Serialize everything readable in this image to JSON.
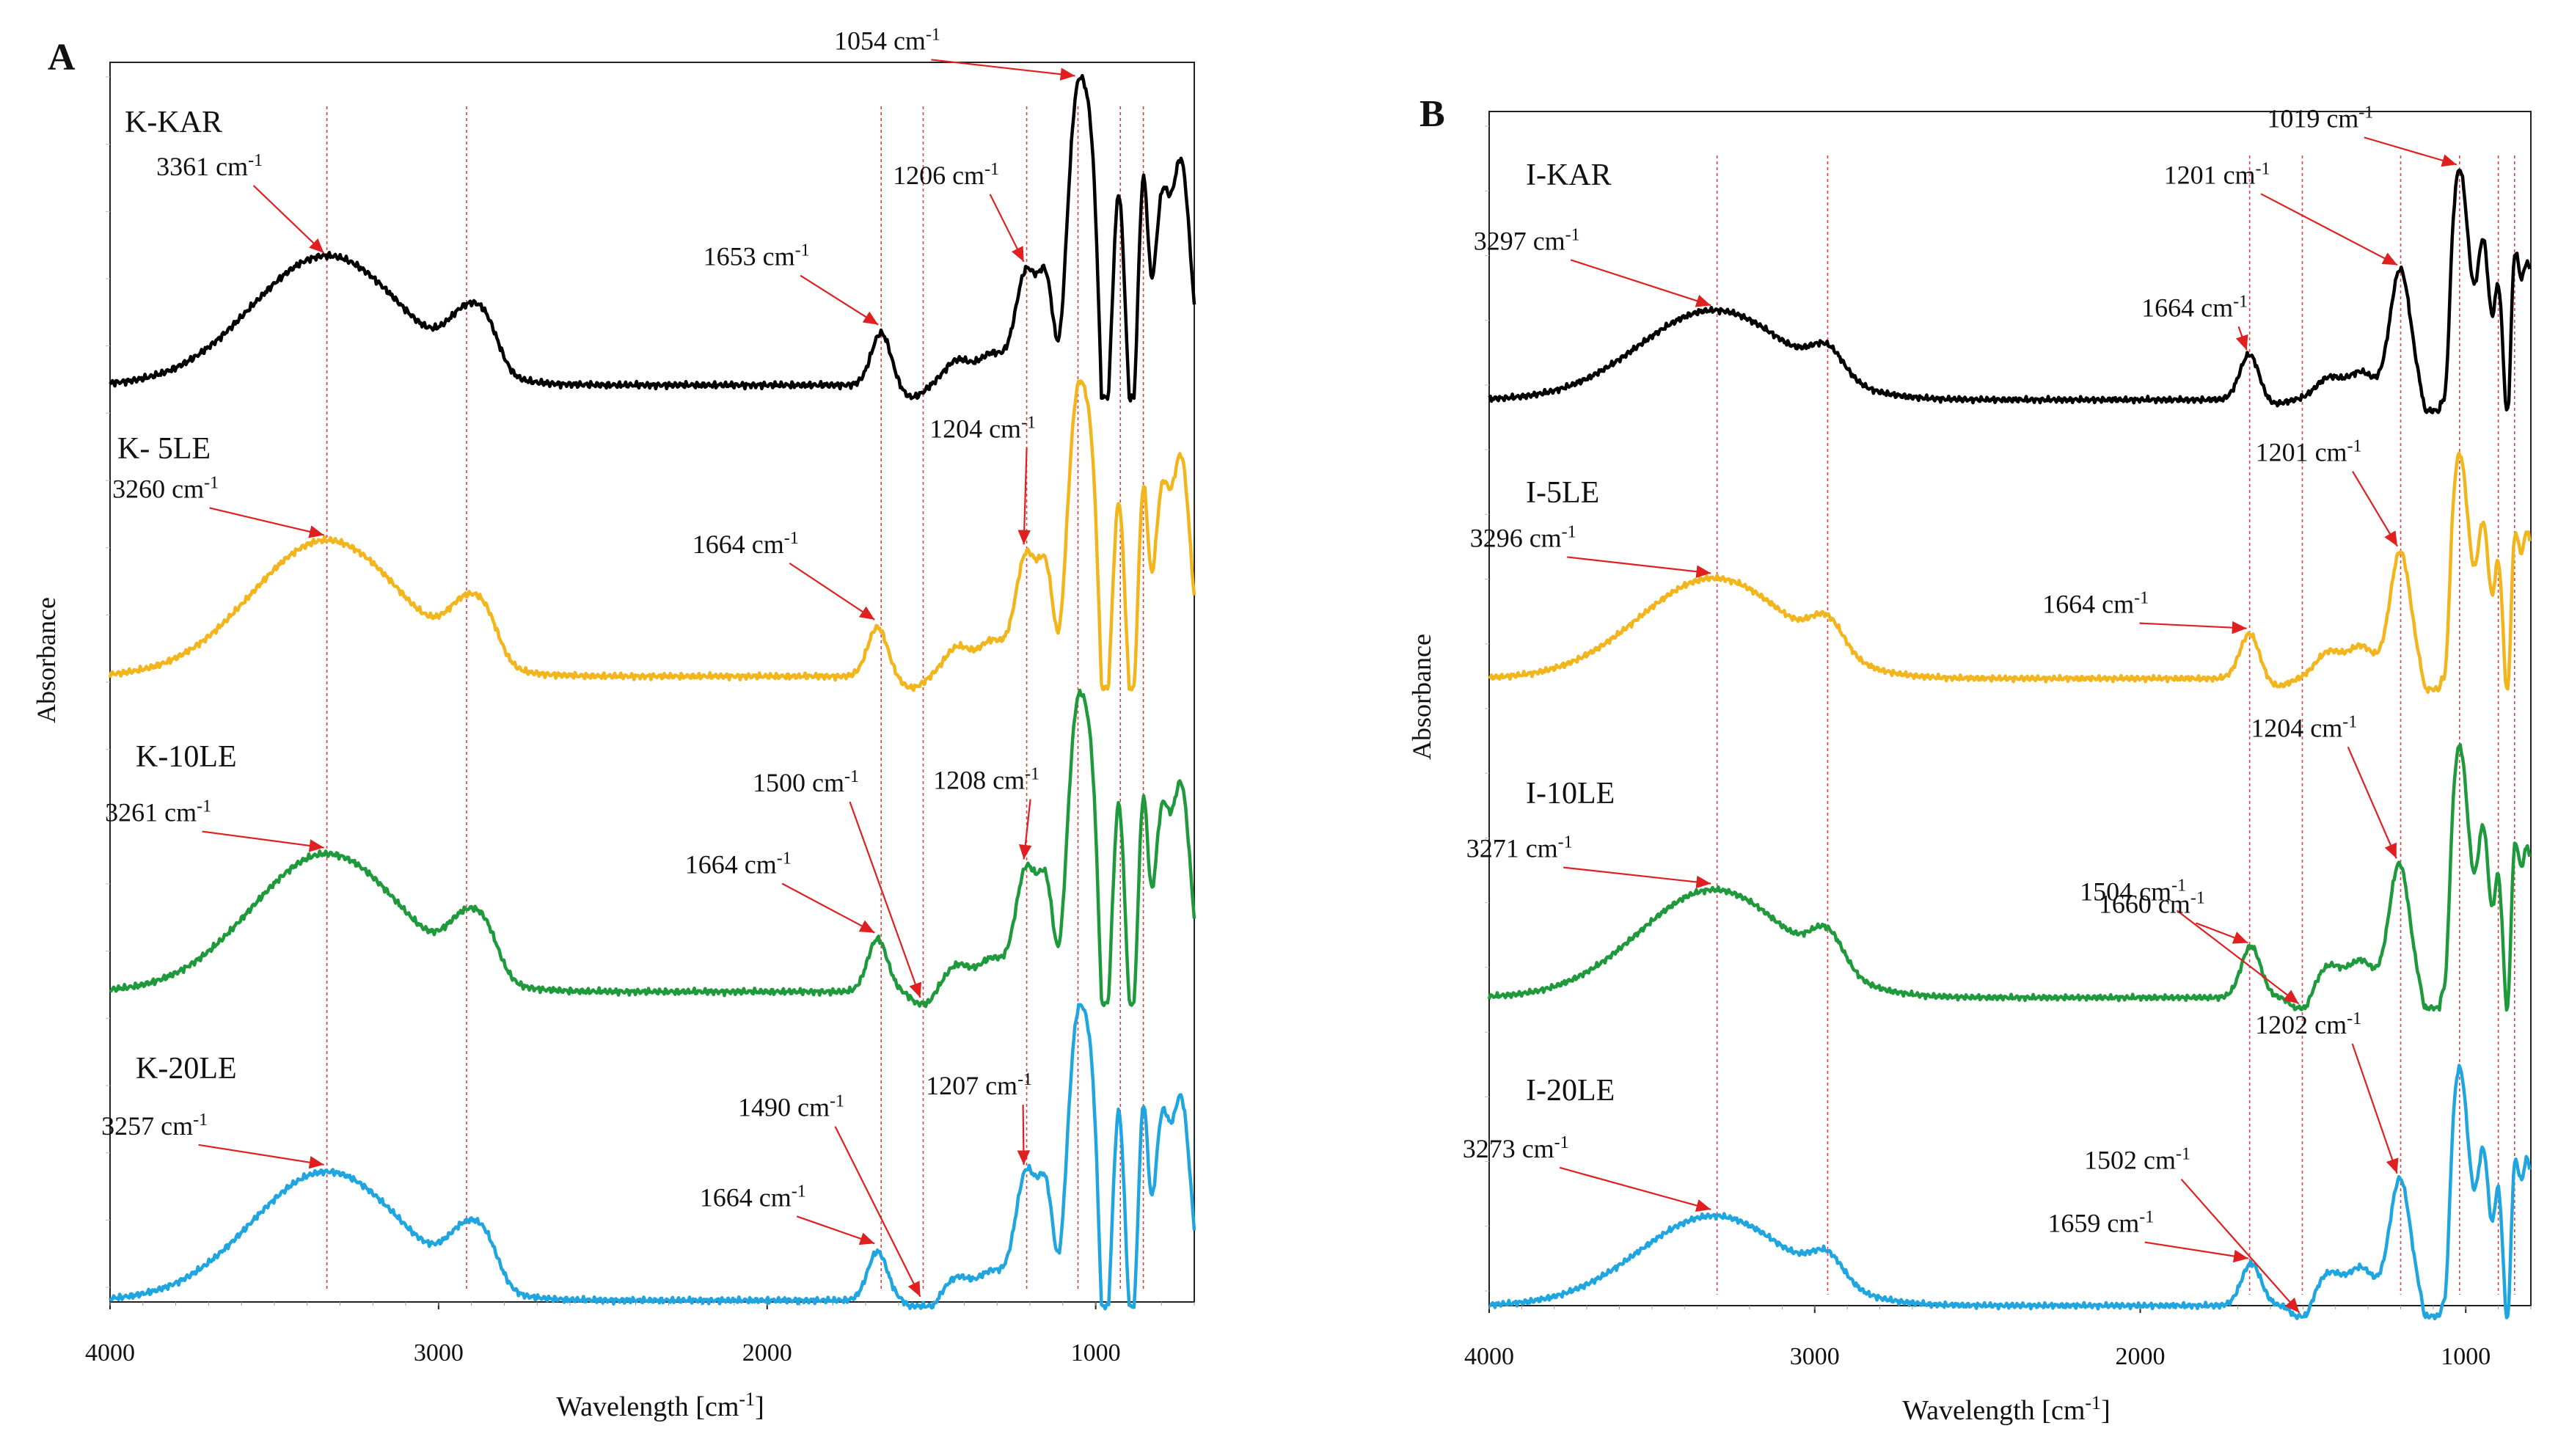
{
  "figure": {
    "description_free": true
  },
  "chart_data": [
    {
      "type": "line",
      "panel_label": "A",
      "xlabel": "Wavelength [cm",
      "xlabel_sup": "-1",
      "xlabel_tail": "]",
      "ylabel": "Absorbance",
      "xlim": [
        4000,
        700
      ],
      "x_ticks": [
        4000,
        3000,
        2000,
        1000
      ],
      "unit": "cm",
      "unit_sup": "-1",
      "colors": {
        "K-KAR": "#000000",
        "K- 5LE": "#f2b51c",
        "K-10LE": "#1e9a3c",
        "K-20LE": "#1fa5e0"
      },
      "ref_lines": [
        3340,
        2915,
        1653,
        1525,
        1210,
        1054,
        925,
        855
      ],
      "series": [
        {
          "name": "K-KAR",
          "color": "#000000",
          "baseline": 0.0,
          "peaks": [
            [
              3340,
              0.42,
              230
            ],
            [
              2915,
              0.16,
              55
            ],
            [
              2850,
              0.1,
              40
            ],
            [
              1653,
              0.17,
              30
            ],
            [
              1420,
              0.08,
              40
            ],
            [
              1315,
              0.1,
              40
            ],
            [
              1210,
              0.37,
              34
            ],
            [
              1150,
              0.28,
              22
            ],
            [
              1054,
              0.95,
              32
            ],
            [
              1010,
              0.4,
              20
            ],
            [
              930,
              0.62,
              16
            ],
            [
              855,
              0.65,
              14
            ],
            [
              800,
              0.55,
              22
            ],
            [
              740,
              0.72,
              28
            ]
          ],
          "dips": [
            [
              1560,
              0.04,
              35
            ],
            [
              1110,
              0.1,
              15
            ],
            [
              975,
              0.32,
              12
            ],
            [
              890,
              0.18,
              10
            ]
          ],
          "annotations": [
            {
              "text": "3361 cm",
              "x": 3340
            },
            {
              "text": "1653 cm",
              "x": 1653
            },
            {
              "text": "1206 cm",
              "x": 1210
            },
            {
              "text": "1054 cm",
              "x": 1054
            }
          ]
        },
        {
          "name": "K- 5LE",
          "color": "#f2b51c",
          "baseline": 0.0,
          "peaks": [
            [
              3340,
              0.47,
              230
            ],
            [
              2915,
              0.17,
              55
            ],
            [
              2850,
              0.1,
              40
            ],
            [
              1664,
              0.17,
              30
            ],
            [
              1420,
              0.1,
              40
            ],
            [
              1315,
              0.12,
              40
            ],
            [
              1210,
              0.42,
              34
            ],
            [
              1150,
              0.3,
              22
            ],
            [
              1054,
              0.97,
              32
            ],
            [
              1010,
              0.4,
              20
            ],
            [
              930,
              0.6,
              16
            ],
            [
              855,
              0.63,
              14
            ],
            [
              800,
              0.58,
              22
            ],
            [
              740,
              0.75,
              28
            ]
          ],
          "dips": [
            [
              1560,
              0.04,
              35
            ],
            [
              1110,
              0.1,
              15
            ],
            [
              975,
              0.32,
              12
            ],
            [
              890,
              0.18,
              10
            ]
          ],
          "annotations": [
            {
              "text": "3260 cm",
              "x": 3340
            },
            {
              "text": "1664 cm",
              "x": 1664
            },
            {
              "text": "1204 cm",
              "x": 1210
            }
          ]
        },
        {
          "name": "K-10LE",
          "color": "#1e9a3c",
          "baseline": 0.0,
          "peaks": [
            [
              3340,
              0.47,
              230
            ],
            [
              2915,
              0.17,
              55
            ],
            [
              2850,
              0.1,
              40
            ],
            [
              1664,
              0.18,
              30
            ],
            [
              1420,
              0.09,
              40
            ],
            [
              1315,
              0.11,
              40
            ],
            [
              1210,
              0.42,
              34
            ],
            [
              1150,
              0.3,
              22
            ],
            [
              1054,
              0.97,
              32
            ],
            [
              1010,
              0.4,
              20
            ],
            [
              930,
              0.64,
              16
            ],
            [
              855,
              0.64,
              14
            ],
            [
              800,
              0.56,
              22
            ],
            [
              740,
              0.7,
              28
            ]
          ],
          "dips": [
            [
              1525,
              0.05,
              30
            ],
            [
              1110,
              0.1,
              15
            ],
            [
              975,
              0.32,
              12
            ],
            [
              890,
              0.18,
              10
            ]
          ],
          "annotations": [
            {
              "text": "3261 cm",
              "x": 3340
            },
            {
              "text": "1500 cm",
              "x": 1525
            },
            {
              "text": "1664 cm",
              "x": 1664
            },
            {
              "text": "1208 cm",
              "x": 1210
            }
          ]
        },
        {
          "name": "K-20LE",
          "color": "#1fa5e0",
          "baseline": -0.02,
          "peaks": [
            [
              3340,
              0.45,
              230
            ],
            [
              2915,
              0.17,
              55
            ],
            [
              2850,
              0.1,
              40
            ],
            [
              1664,
              0.17,
              30
            ],
            [
              1420,
              0.08,
              40
            ],
            [
              1315,
              0.1,
              40
            ],
            [
              1210,
              0.45,
              34
            ],
            [
              1150,
              0.32,
              22
            ],
            [
              1054,
              0.98,
              32
            ],
            [
              1010,
              0.42,
              20
            ],
            [
              930,
              0.66,
              16
            ],
            [
              855,
              0.66,
              14
            ],
            [
              800,
              0.58,
              22
            ],
            [
              740,
              0.7,
              28
            ]
          ],
          "dips": [
            [
              1525,
              0.06,
              30
            ],
            [
              1110,
              0.1,
              15
            ],
            [
              975,
              0.32,
              12
            ],
            [
              890,
              0.18,
              10
            ]
          ],
          "annotations": [
            {
              "text": "3257 cm",
              "x": 3340
            },
            {
              "text": "1490 cm",
              "x": 1525
            },
            {
              "text": "1664 cm",
              "x": 1664
            },
            {
              "text": "1207 cm",
              "x": 1210
            }
          ]
        }
      ]
    },
    {
      "type": "line",
      "panel_label": "B",
      "xlabel": "Wavelength [cm",
      "xlabel_sup": "-1",
      "xlabel_tail": "]",
      "ylabel": "Absorbance",
      "xlim": [
        4000,
        800
      ],
      "x_ticks": [
        4000,
        3000,
        2000,
        1000
      ],
      "unit": "cm",
      "unit_sup": "-1",
      "colors": {
        "I-KAR": "#000000",
        "I-5LE": "#f2b51c",
        "I-10LE": "#1e9a3c",
        "I-20LE": "#1fa5e0"
      },
      "ref_lines": [
        3300,
        2960,
        1664,
        1502,
        1200,
        1019,
        900,
        850
      ],
      "series": [
        {
          "name": "I-KAR",
          "color": "#000000",
          "baseline": 0.0,
          "peaks": [
            [
              3310,
              0.33,
              230
            ],
            [
              2960,
              0.1,
              50
            ],
            [
              1664,
              0.17,
              30
            ],
            [
              1420,
              0.08,
              40
            ],
            [
              1320,
              0.1,
              40
            ],
            [
              1201,
              0.48,
              32
            ],
            [
              1019,
              0.85,
              30
            ],
            [
              945,
              0.55,
              18
            ],
            [
              900,
              0.4,
              12
            ],
            [
              850,
              0.5,
              14
            ],
            [
              810,
              0.5,
              18
            ]
          ],
          "dips": [
            [
              1600,
              0.02,
              35
            ],
            [
              1100,
              0.2,
              18
            ],
            [
              1060,
              0.25,
              10
            ],
            [
              870,
              0.25,
              8
            ]
          ],
          "annotations": [
            {
              "text": "3297 cm",
              "x": 3310
            },
            {
              "text": "1664 cm",
              "x": 1664
            },
            {
              "text": "1201 cm",
              "x": 1201
            },
            {
              "text": "1019 cm",
              "x": 1019
            }
          ]
        },
        {
          "name": "I-5LE",
          "color": "#f2b51c",
          "baseline": 0.0,
          "peaks": [
            [
              3310,
              0.38,
              230
            ],
            [
              2960,
              0.12,
              50
            ],
            [
              1664,
              0.17,
              30
            ],
            [
              1420,
              0.1,
              40
            ],
            [
              1320,
              0.12,
              40
            ],
            [
              1201,
              0.48,
              32
            ],
            [
              1019,
              0.85,
              30
            ],
            [
              945,
              0.55,
              18
            ],
            [
              900,
              0.42,
              12
            ],
            [
              850,
              0.5,
              14
            ],
            [
              810,
              0.55,
              18
            ]
          ],
          "dips": [
            [
              1580,
              0.03,
              35
            ],
            [
              1100,
              0.2,
              18
            ],
            [
              1060,
              0.25,
              10
            ],
            [
              870,
              0.25,
              8
            ]
          ],
          "annotations": [
            {
              "text": "3296 cm",
              "x": 3310
            },
            {
              "text": "1664 cm",
              "x": 1664
            },
            {
              "text": "1201 cm",
              "x": 1201
            }
          ]
        },
        {
          "name": "I-10LE",
          "color": "#1e9a3c",
          "baseline": 0.0,
          "peaks": [
            [
              3310,
              0.42,
              230
            ],
            [
              2960,
              0.14,
              50
            ],
            [
              1660,
              0.2,
              30
            ],
            [
              1420,
              0.12,
              40
            ],
            [
              1320,
              0.14,
              40
            ],
            [
              1204,
              0.52,
              32
            ],
            [
              1019,
              0.98,
              30
            ],
            [
              945,
              0.62,
              18
            ],
            [
              900,
              0.45,
              12
            ],
            [
              850,
              0.55,
              14
            ],
            [
              810,
              0.58,
              18
            ]
          ],
          "dips": [
            [
              1504,
              0.07,
              25
            ],
            [
              1100,
              0.22,
              18
            ],
            [
              1060,
              0.25,
              10
            ],
            [
              870,
              0.25,
              8
            ]
          ],
          "annotations": [
            {
              "text": "3271 cm",
              "x": 3310
            },
            {
              "text": "1504 cm",
              "x": 1504
            },
            {
              "text": "1660 cm",
              "x": 1660
            },
            {
              "text": "1204 cm",
              "x": 1204
            }
          ]
        },
        {
          "name": "I-20LE",
          "color": "#1fa5e0",
          "baseline": 0.0,
          "peaks": [
            [
              3310,
              0.34,
              230
            ],
            [
              2960,
              0.1,
              50
            ],
            [
              1659,
              0.16,
              30
            ],
            [
              1420,
              0.12,
              40
            ],
            [
              1320,
              0.14,
              40
            ],
            [
              1202,
              0.48,
              32
            ],
            [
              1019,
              0.9,
              30
            ],
            [
              945,
              0.55,
              18
            ],
            [
              900,
              0.42,
              12
            ],
            [
              850,
              0.5,
              14
            ],
            [
              810,
              0.55,
              18
            ]
          ],
          "dips": [
            [
              1502,
              0.07,
              25
            ],
            [
              1100,
              0.22,
              18
            ],
            [
              1060,
              0.25,
              10
            ],
            [
              870,
              0.25,
              8
            ]
          ],
          "annotations": [
            {
              "text": "3273 cm",
              "x": 3310
            },
            {
              "text": "1502 cm",
              "x": 1502
            },
            {
              "text": "1659 cm",
              "x": 1659
            },
            {
              "text": "1202 cm",
              "x": 1202
            }
          ]
        }
      ]
    }
  ]
}
